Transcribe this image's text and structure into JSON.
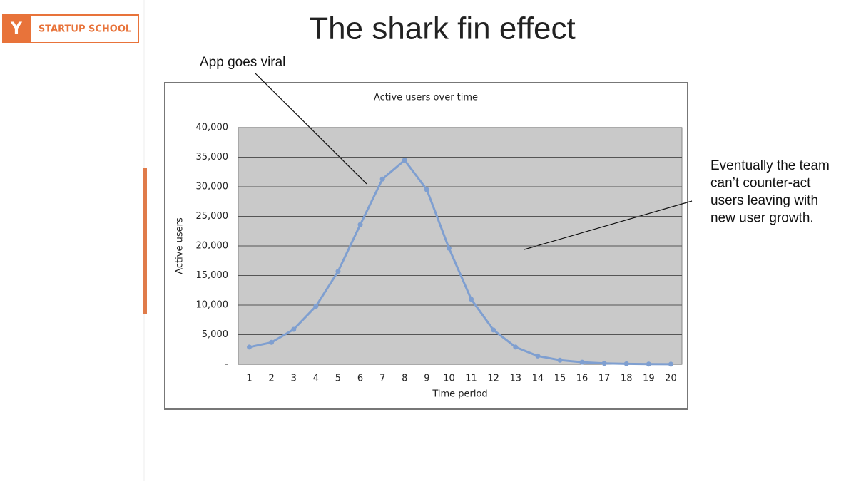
{
  "header": {
    "logo_mark": "Y",
    "logo_text": "STARTUP SCHOOL",
    "title": "The shark fin effect"
  },
  "annotations": [
    {
      "lines": [
        "App goes viral"
      ]
    },
    {
      "lines": [
        "Eventually the team",
        "can’t counter-act",
        "users leaving with",
        "new user growth."
      ]
    }
  ],
  "chart_data": {
    "type": "line",
    "title": "Active users over time",
    "x_label": "Time period",
    "y_label": "Active users",
    "categories": [
      1,
      2,
      3,
      4,
      5,
      6,
      7,
      8,
      9,
      10,
      11,
      12,
      13,
      14,
      15,
      16,
      17,
      18,
      19,
      20
    ],
    "series": [
      {
        "name": "Active users",
        "color": "#7f9fd0",
        "values": [
          2900,
          3700,
          5900,
          9800,
          15700,
          23600,
          31300,
          34500,
          29500,
          19600,
          11000,
          5800,
          2900,
          1400,
          700,
          350,
          150,
          80,
          30,
          10
        ]
      }
    ],
    "ylim": [
      0,
      40000
    ],
    "yticks": [
      {
        "value": 0,
        "label": "-"
      },
      {
        "value": 5000,
        "label": "5,000"
      },
      {
        "value": 10000,
        "label": "10,000"
      },
      {
        "value": 15000,
        "label": "15,000"
      },
      {
        "value": 20000,
        "label": "20,000"
      },
      {
        "value": 25000,
        "label": "25,000"
      },
      {
        "value": 30000,
        "label": "30,000"
      },
      {
        "value": 35000,
        "label": "35,000"
      },
      {
        "value": 40000,
        "label": "40,000"
      }
    ],
    "grid": true
  }
}
